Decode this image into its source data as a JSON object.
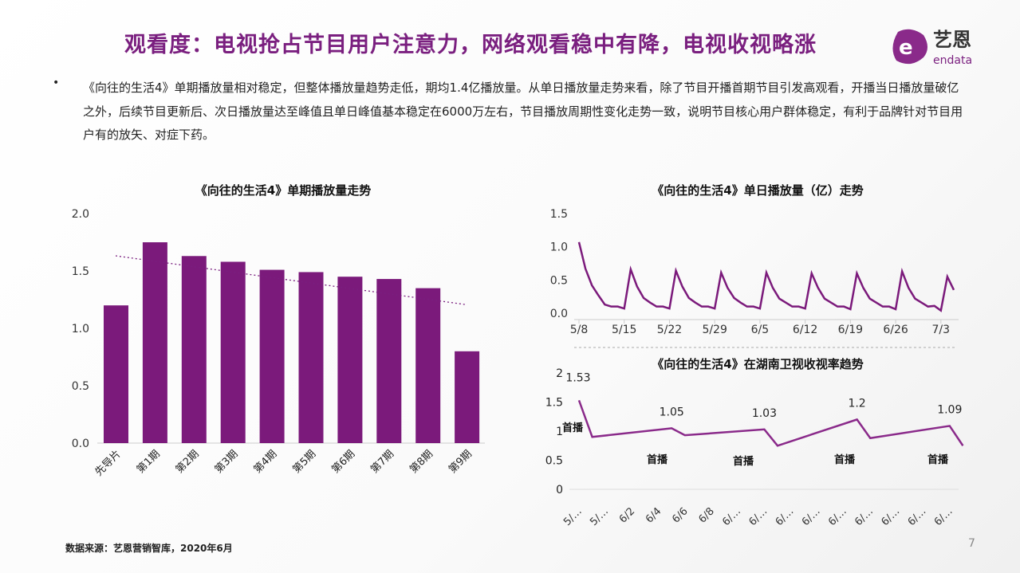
{
  "header": {
    "title": "观看度：电视抢占节目用户注意力，网络观看稳中有降，电视收视略涨",
    "logo_text": "艺恩",
    "logo_sub": "endata"
  },
  "body": {
    "bullet": "•",
    "text": "《向往的生活4》单期播放量相对稳定，但整体播放量趋势走低，期均1.4亿播放量。从单日播放量走势来看，除了节目开播首期节目引发高观看，开播当日播放量破亿之外，后续节目更新后、次日播放量达至峰值且单日峰值基本稳定在6000万左右，节目播放周期性变化走势一致，说明节目核心用户群体稳定，有利于品牌针对节目用户有的放矢、对症下药。"
  },
  "footer": {
    "source": "数据来源：艺恩营销智库，2020年6月",
    "page": "7"
  },
  "colors": {
    "accent": "#7a1f7f",
    "bar": "#7b1a7b"
  },
  "chart_data": [
    {
      "type": "bar",
      "title": "《向往的生活4》单期播放量走势",
      "categories": [
        "先导片",
        "第1期",
        "第2期",
        "第3期",
        "第4期",
        "第5期",
        "第6期",
        "第7期",
        "第8期",
        "第9期"
      ],
      "values": [
        1.2,
        1.75,
        1.63,
        1.58,
        1.51,
        1.49,
        1.45,
        1.43,
        1.35,
        0.8
      ],
      "ylim": [
        0,
        2.0
      ],
      "yticks": [
        "0.0",
        "0.5",
        "1.0",
        "1.5",
        "2.0"
      ],
      "trendline": "linear, dotted",
      "grid": false
    },
    {
      "type": "line",
      "title": "《向往的生活4》单日播放量（亿）走势",
      "x_start": "5/8",
      "x_end": "7/5",
      "ylim": [
        0,
        1.5
      ],
      "yticks": [
        "0.0",
        "0.5",
        "1.0",
        "1.5"
      ],
      "xticks": [
        "5/8",
        "5/15",
        "5/22",
        "5/29",
        "6/5",
        "6/12",
        "6/19",
        "6/26",
        "7/3"
      ],
      "values": [
        1.07,
        0.67,
        0.42,
        0.27,
        0.13,
        0.1,
        0.1,
        0.07,
        0.66,
        0.4,
        0.23,
        0.16,
        0.1,
        0.1,
        0.07,
        0.64,
        0.4,
        0.23,
        0.16,
        0.1,
        0.1,
        0.07,
        0.61,
        0.38,
        0.23,
        0.16,
        0.1,
        0.1,
        0.07,
        0.61,
        0.38,
        0.22,
        0.16,
        0.1,
        0.1,
        0.07,
        0.6,
        0.38,
        0.22,
        0.16,
        0.1,
        0.1,
        0.06,
        0.6,
        0.38,
        0.22,
        0.16,
        0.1,
        0.1,
        0.06,
        0.63,
        0.38,
        0.22,
        0.16,
        0.1,
        0.11,
        0.04,
        0.55,
        0.35
      ]
    },
    {
      "type": "line",
      "title": "《向往的生活4》在湖南卫视收视率趋势",
      "ylim": [
        0,
        2
      ],
      "yticks": [
        "0",
        "0.5",
        "1",
        "1.5",
        "2"
      ],
      "xticks": [
        "5/…",
        "5/…",
        "6/2",
        "6/4",
        "6/6",
        "6/8",
        "6/…",
        "6/…",
        "6/…",
        "6/…",
        "6/…",
        "6/…",
        "6/…",
        "6/…",
        "6/…"
      ],
      "x_start": "5/29",
      "points": [
        {
          "x": "5/29",
          "y": 1.53,
          "label": "1.53"
        },
        {
          "x": "5/30",
          "y": 0.9
        },
        {
          "x": "6/5",
          "y": 1.05,
          "label": "1.05"
        },
        {
          "x": "6/6",
          "y": 0.93
        },
        {
          "x": "6/12",
          "y": 1.03,
          "label": "1.03"
        },
        {
          "x": "6/13",
          "y": 0.75
        },
        {
          "x": "6/19",
          "y": 1.2,
          "label": "1.2"
        },
        {
          "x": "6/20",
          "y": 0.88
        },
        {
          "x": "6/26",
          "y": 1.09,
          "label": "1.09"
        },
        {
          "x": "6/27",
          "y": 0.75
        }
      ],
      "annotations": [
        "首播",
        "首播",
        "首播",
        "首播",
        "首播"
      ]
    }
  ]
}
